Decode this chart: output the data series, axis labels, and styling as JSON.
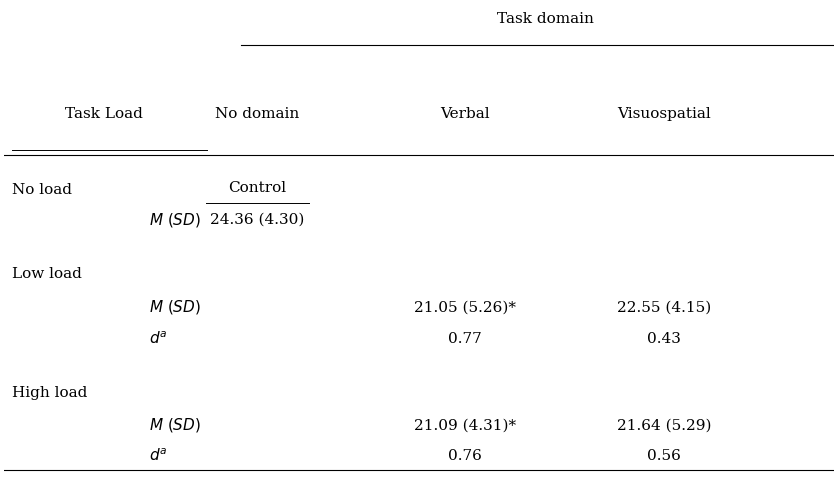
{
  "title": "Task domain",
  "col_header_1": "Task Load",
  "col_header_2": "No domain",
  "col_header_3": "Verbal",
  "col_header_4": "Visuospatial",
  "background_color": "#ffffff",
  "text_color": "#000000",
  "font_size": 11
}
